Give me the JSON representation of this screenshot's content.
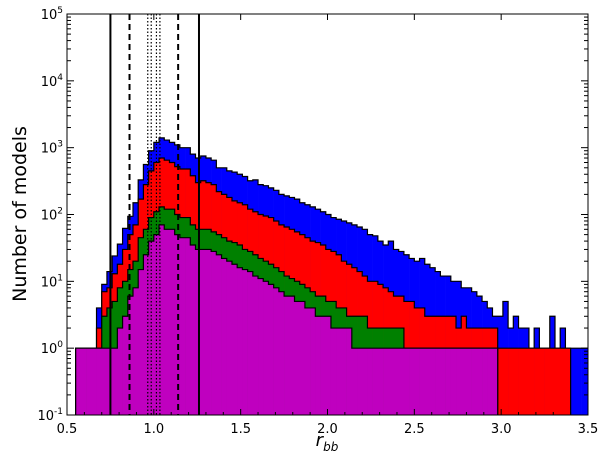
{
  "chart_data": {
    "type": "histogram",
    "title": "",
    "xlabel": "r_bb",
    "xlabel_main": "r",
    "xlabel_sub": "bb",
    "ylabel": "Number of models",
    "xlim": [
      0.5,
      3.5
    ],
    "ylim": [
      0.1,
      100000
    ],
    "yscale": "log",
    "grid": false,
    "legend": "none",
    "x_ticks": [
      0.5,
      1.0,
      1.5,
      2.0,
      2.5,
      3.0,
      3.5
    ],
    "x_tick_labels": [
      "0.5",
      "1.0",
      "1.5",
      "2.0",
      "2.5",
      "3.0",
      "3.5"
    ],
    "y_ticks": [
      0.1,
      1,
      10,
      100,
      1000,
      10000,
      100000
    ],
    "y_tick_labels": [
      {
        "base": "10",
        "exp": "-1"
      },
      {
        "base": "10",
        "exp": "0"
      },
      {
        "base": "10",
        "exp": "1"
      },
      {
        "base": "10",
        "exp": "2"
      },
      {
        "base": "10",
        "exp": "3"
      },
      {
        "base": "10",
        "exp": "4"
      },
      {
        "base": "10",
        "exp": "5"
      }
    ],
    "bin_edges_start": 0.55,
    "bin_width": 0.03,
    "series": [
      {
        "color": "#0000ff",
        "values": [
          1,
          1,
          1,
          1,
          4,
          9,
          14,
          24,
          36,
          62,
          94,
          150,
          330,
          560,
          900,
          1200,
          1400,
          1300,
          1200,
          1100,
          1000,
          1000,
          800,
          700,
          750,
          700,
          650,
          500,
          500,
          450,
          430,
          400,
          370,
          320,
          330,
          280,
          270,
          250,
          230,
          200,
          190,
          180,
          170,
          150,
          140,
          130,
          120,
          110,
          100,
          90,
          85,
          80,
          75,
          70,
          65,
          60,
          50,
          48,
          40,
          35,
          40,
          30,
          28,
          25,
          22,
          20,
          22,
          18,
          16,
          14,
          12,
          12,
          10,
          10,
          8,
          8,
          7,
          6,
          5,
          4,
          3,
          3,
          5,
          2,
          3,
          2,
          2,
          1,
          2,
          1,
          1,
          3,
          1,
          2,
          1,
          1,
          1,
          1,
          1,
          1,
          2
        ]
      },
      {
        "color": "#ff0000",
        "values": [
          1,
          1,
          1,
          1,
          2,
          7,
          8,
          13,
          18,
          30,
          50,
          70,
          170,
          280,
          450,
          600,
          700,
          650,
          600,
          520,
          480,
          480,
          380,
          300,
          320,
          300,
          280,
          220,
          200,
          180,
          160,
          150,
          140,
          120,
          110,
          100,
          95,
          90,
          80,
          70,
          65,
          60,
          55,
          50,
          45,
          40,
          38,
          35,
          30,
          28,
          25,
          20,
          18,
          16,
          14,
          12,
          10,
          10,
          9,
          8,
          7,
          6,
          6,
          5,
          5,
          4,
          4,
          3,
          3,
          3,
          3,
          3,
          3,
          2,
          3,
          2,
          2,
          2,
          2,
          2,
          2,
          1,
          1,
          1,
          1,
          1,
          1,
          1,
          1,
          1,
          1,
          1,
          1,
          1,
          1,
          0,
          0,
          0,
          0,
          0
        ]
      },
      {
        "color": "#008000",
        "values": [
          1,
          1,
          1,
          1,
          1,
          3,
          4,
          5,
          8,
          10,
          15,
          20,
          45,
          60,
          90,
          110,
          130,
          120,
          120,
          100,
          90,
          90,
          70,
          60,
          60,
          60,
          55,
          50,
          45,
          40,
          38,
          35,
          30,
          28,
          25,
          22,
          20,
          18,
          16,
          14,
          12,
          11,
          10,
          9,
          8,
          7,
          6,
          6,
          5,
          5,
          4,
          4,
          3,
          3,
          3,
          3,
          2,
          2,
          2,
          2,
          2,
          2,
          2,
          1,
          1,
          1,
          1,
          1,
          1,
          1,
          1,
          1,
          1,
          1,
          1,
          1,
          1,
          1,
          1,
          1,
          1,
          0,
          0,
          0,
          0,
          0,
          0,
          0,
          0,
          0,
          0,
          0,
          0,
          0,
          0,
          0,
          0,
          0,
          0,
          0
        ]
      },
      {
        "color": "#bf00bf",
        "values": [
          1,
          1,
          1,
          1,
          1,
          1,
          1,
          1,
          2,
          3,
          6,
          8,
          15,
          25,
          40,
          50,
          70,
          60,
          60,
          50,
          45,
          45,
          35,
          30,
          30,
          30,
          28,
          25,
          22,
          20,
          18,
          16,
          15,
          14,
          12,
          11,
          10,
          9,
          8,
          7,
          6,
          6,
          5,
          5,
          4,
          4,
          3,
          3,
          3,
          2,
          2,
          2,
          2,
          1,
          1,
          1,
          1,
          1,
          1,
          1,
          1,
          1,
          1,
          1,
          1,
          1,
          1,
          1,
          1,
          1,
          1,
          1,
          1,
          1,
          1,
          1,
          1,
          1,
          1,
          1,
          1,
          0,
          0,
          0,
          0,
          0,
          0,
          0,
          0,
          0,
          0,
          0,
          0,
          0,
          0,
          0,
          0,
          0,
          0,
          0
        ]
      }
    ],
    "vlines": [
      {
        "x": 0.75,
        "style": "solid"
      },
      {
        "x": 1.26,
        "style": "solid"
      },
      {
        "x": 0.86,
        "style": "dashed"
      },
      {
        "x": 1.14,
        "style": "dashed"
      },
      {
        "x": 0.965,
        "style": "dotted"
      },
      {
        "x": 0.985,
        "style": "dotted"
      },
      {
        "x": 1.015,
        "style": "dotted"
      },
      {
        "x": 1.035,
        "style": "dotted"
      }
    ]
  }
}
